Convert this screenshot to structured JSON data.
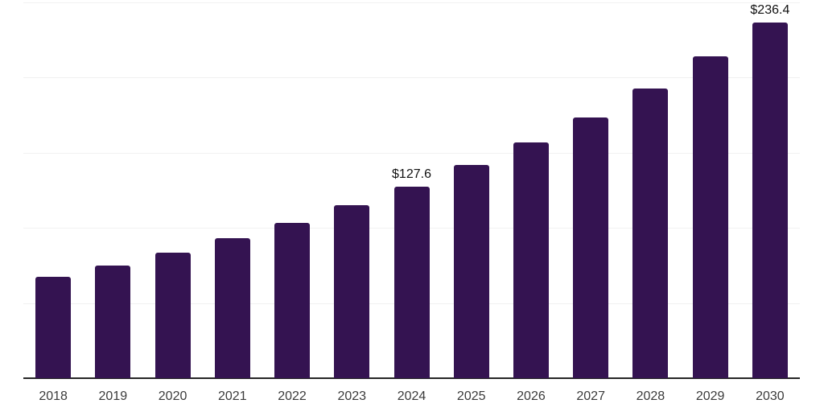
{
  "chart_data": {
    "type": "bar",
    "title": "",
    "xlabel": "",
    "ylabel": "",
    "categories": [
      "2018",
      "2019",
      "2020",
      "2021",
      "2022",
      "2023",
      "2024",
      "2025",
      "2026",
      "2027",
      "2028",
      "2029",
      "2030"
    ],
    "values": [
      67.5,
      75.1,
      83.7,
      93.4,
      103.4,
      115.0,
      127.6,
      142.0,
      156.7,
      173.7,
      192.8,
      213.9,
      236.4
    ],
    "data_labels": {
      "2024": "$127.6",
      "2030": "$236.4"
    },
    "ylim": [
      0,
      250
    ],
    "gridlines_y": [
      50,
      100,
      150,
      200,
      250
    ],
    "grid": "on",
    "legend_position": "none",
    "colors": {
      "bar": "#341351",
      "axis_line": "#262626",
      "gridline": "#f1f1f1",
      "tick_label": "#3b3b3b",
      "data_label": "#111111",
      "background": "#ffffff"
    }
  }
}
